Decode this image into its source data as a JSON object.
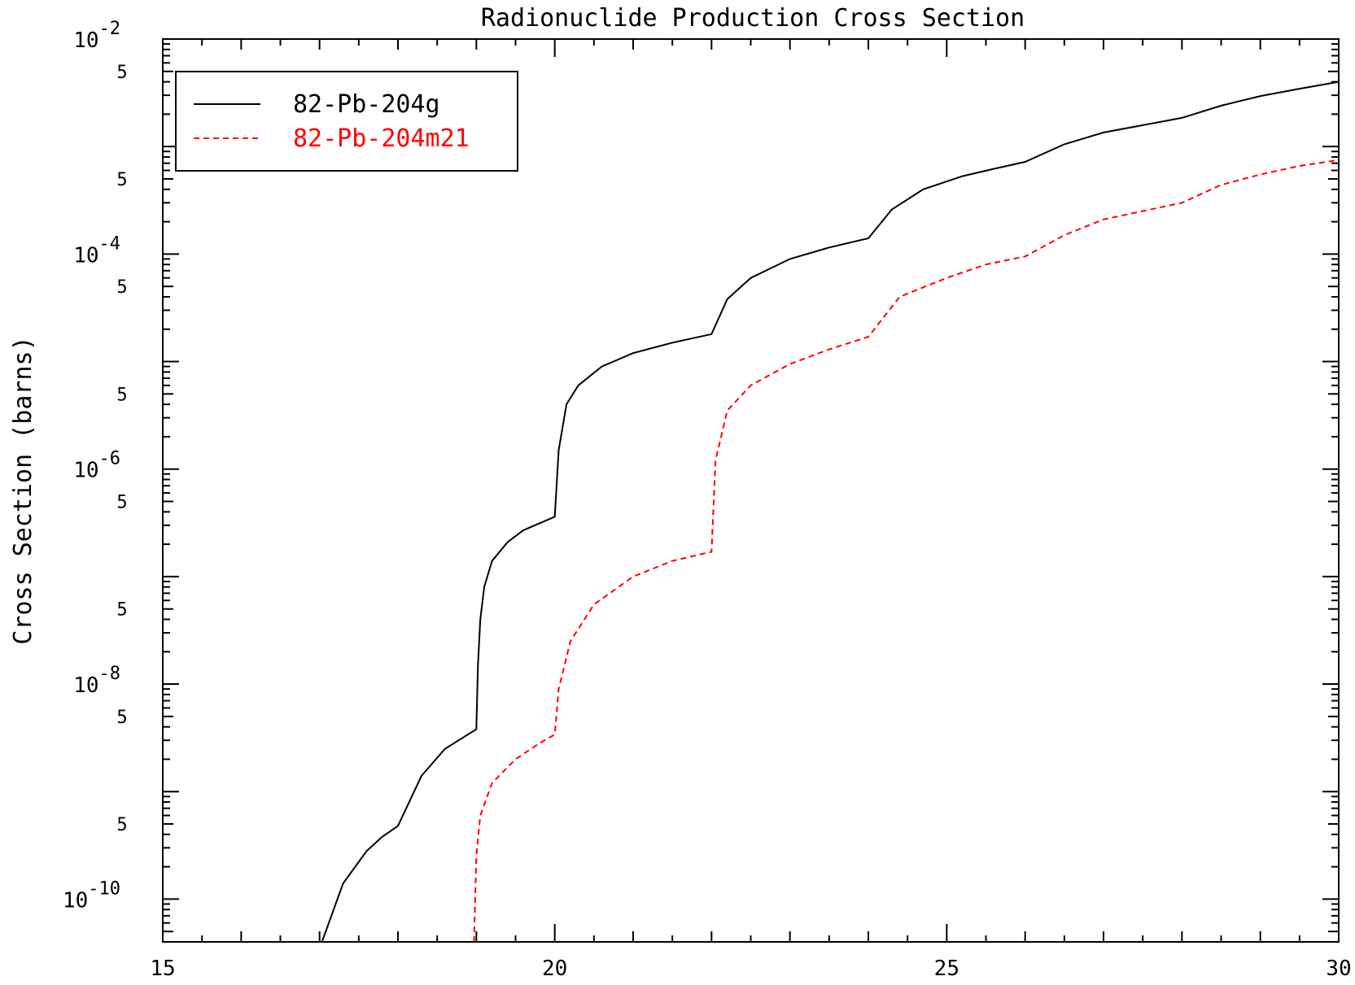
{
  "chart_data": {
    "type": "line",
    "title": "Radionuclide Production Cross Section",
    "xlabel": "",
    "ylabel": "Cross Section (barns)",
    "xscale": "linear",
    "yscale": "log",
    "xlim": [
      15,
      30
    ],
    "ylim": [
      4e-11,
      0.01
    ],
    "x_ticks": [
      15,
      20,
      25,
      30
    ],
    "y_major_ticks": [
      {
        "value": 1e-10,
        "base": "10",
        "exp": "-10"
      },
      {
        "value": 1e-08,
        "base": "10",
        "exp": "-8"
      },
      {
        "value": 1e-06,
        "base": "10",
        "exp": "-6"
      },
      {
        "value": 0.0001,
        "base": "10",
        "exp": "-4"
      },
      {
        "value": 0.01,
        "base": "10",
        "exp": "-2"
      }
    ],
    "y_minor_labels": [
      {
        "value": 5e-10,
        "label": "5"
      },
      {
        "value": 5e-09,
        "label": "5"
      },
      {
        "value": 5e-08,
        "label": "5"
      },
      {
        "value": 5e-07,
        "label": "5"
      },
      {
        "value": 5e-06,
        "label": "5"
      },
      {
        "value": 5e-05,
        "label": "5"
      },
      {
        "value": 0.0005,
        "label": "5"
      },
      {
        "value": 0.005,
        "label": "5"
      }
    ],
    "legend_position": "top-left",
    "series": [
      {
        "name": "82-Pb-204g",
        "color": "#000000",
        "dash": "solid",
        "x": [
          17.03,
          17.3,
          17.6,
          17.8,
          18.0,
          18.0,
          18.3,
          18.6,
          19.0,
          19.0,
          19.02,
          19.05,
          19.1,
          19.2,
          19.4,
          19.6,
          20.0,
          20.0,
          20.05,
          20.15,
          20.3,
          20.6,
          21.0,
          21.5,
          22.0,
          22.0,
          22.2,
          22.5,
          23.0,
          23.5,
          24.0,
          24.0,
          24.3,
          24.7,
          25.2,
          25.6,
          26.0,
          26.0,
          26.5,
          27.0,
          28.0,
          28.0,
          28.5,
          29.0,
          29.5,
          30.0
        ],
        "y": [
          4e-11,
          1.4e-10,
          2.8e-10,
          3.8e-10,
          4.8e-10,
          4.8e-10,
          1.4e-09,
          2.5e-09,
          3.8e-09,
          3.8e-09,
          1.5e-08,
          4e-08,
          8e-08,
          1.4e-07,
          2.1e-07,
          2.7e-07,
          3.6e-07,
          3.6e-07,
          1.5e-06,
          4e-06,
          6e-06,
          9e-06,
          1.2e-05,
          1.5e-05,
          1.8e-05,
          1.8e-05,
          3.8e-05,
          6e-05,
          9e-05,
          0.000115,
          0.00014,
          0.00014,
          0.00026,
          0.0004,
          0.00053,
          0.00062,
          0.00072,
          0.00072,
          0.00105,
          0.00135,
          0.00185,
          0.00185,
          0.0024,
          0.00295,
          0.00345,
          0.004
        ]
      },
      {
        "name": "82-Pb-204m21",
        "color": "#ff0000",
        "dash": "dashed",
        "x": [
          18.97,
          19.0,
          19.05,
          19.2,
          19.5,
          19.8,
          20.0,
          20.0,
          20.05,
          20.2,
          20.5,
          21.0,
          21.5,
          22.0,
          22.0,
          22.05,
          22.2,
          22.5,
          23.0,
          23.5,
          24.0,
          24.0,
          24.4,
          25.0,
          25.5,
          26.0,
          26.0,
          26.5,
          27.0,
          28.0,
          28.0,
          28.5,
          29.0,
          29.5,
          30.0,
          30.02
        ],
        "y": [
          4e-11,
          2.5e-10,
          6e-10,
          1.2e-09,
          2e-09,
          2.8e-09,
          3.4e-09,
          3.4e-09,
          9e-09,
          2.5e-08,
          5.5e-08,
          1e-07,
          1.4e-07,
          1.7e-07,
          1.7e-07,
          1.2e-06,
          3.5e-06,
          6e-06,
          9.5e-06,
          1.3e-05,
          1.7e-05,
          1.7e-05,
          4e-05,
          6e-05,
          8e-05,
          9.5e-05,
          9.5e-05,
          0.00015,
          0.00021,
          0.0003,
          0.0003,
          0.00044,
          0.00055,
          0.00066,
          0.00075,
          4e-11
        ]
      }
    ]
  }
}
